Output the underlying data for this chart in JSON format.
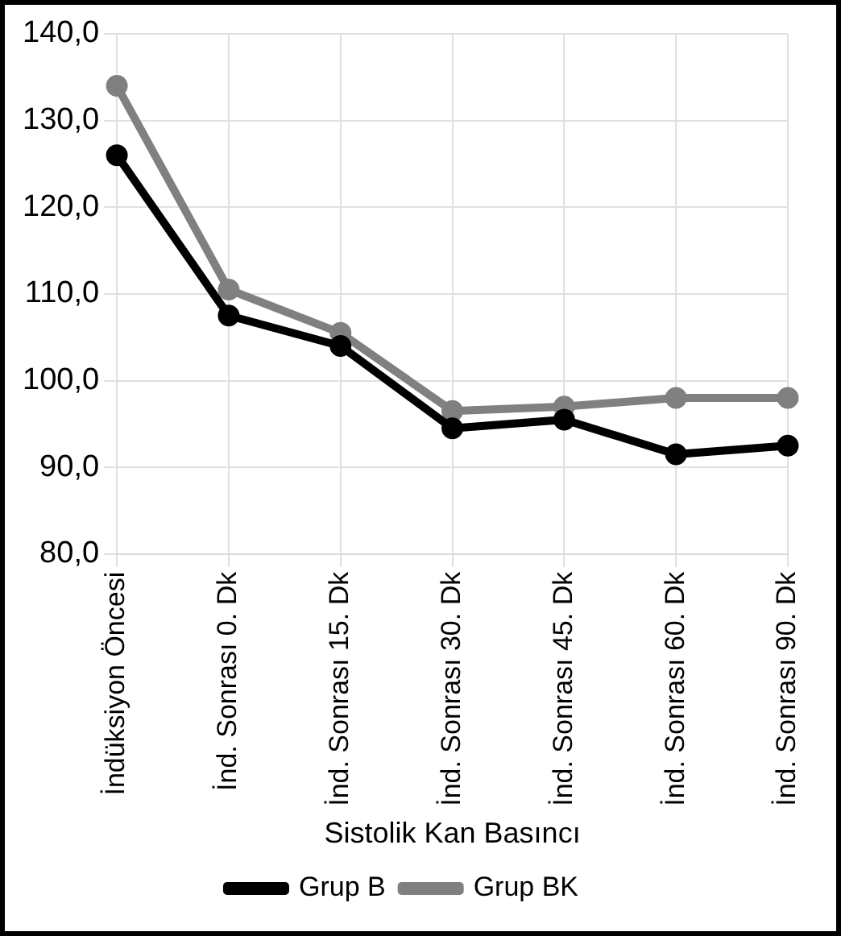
{
  "chart_data": {
    "type": "line",
    "xlabel": "Sistolik Kan Basıncı",
    "categories": [
      "İndüksiyon Öncesi",
      "İnd. Sonrası 0. Dk",
      "İnd. Sonrası 15. Dk",
      "İnd. Sonrası 30. Dk",
      "İnd. Sonrası 45. Dk",
      "İnd. Sonrası 60. Dk",
      "İnd. Sonrası 90. Dk"
    ],
    "series": [
      {
        "name": "Grup B",
        "color": "#000000",
        "values": [
          126,
          107.5,
          104,
          94.5,
          95.5,
          91.5,
          92.5
        ]
      },
      {
        "name": "Grup BK",
        "color": "#808080",
        "values": [
          134,
          110.5,
          105.5,
          96.5,
          97,
          98,
          98
        ]
      }
    ],
    "ylim": [
      80,
      140
    ],
    "yticks": [
      {
        "value": 80,
        "label": "80,0"
      },
      {
        "value": 90,
        "label": "90,0"
      },
      {
        "value": 100,
        "label": "100,0"
      },
      {
        "value": 110,
        "label": "110,0"
      },
      {
        "value": 120,
        "label": "120,0"
      },
      {
        "value": 130,
        "label": "130,0"
      },
      {
        "value": 140,
        "label": "140,0"
      }
    ],
    "grid": true,
    "legend": "bottom",
    "marker": "circle",
    "line_style": "solid"
  }
}
